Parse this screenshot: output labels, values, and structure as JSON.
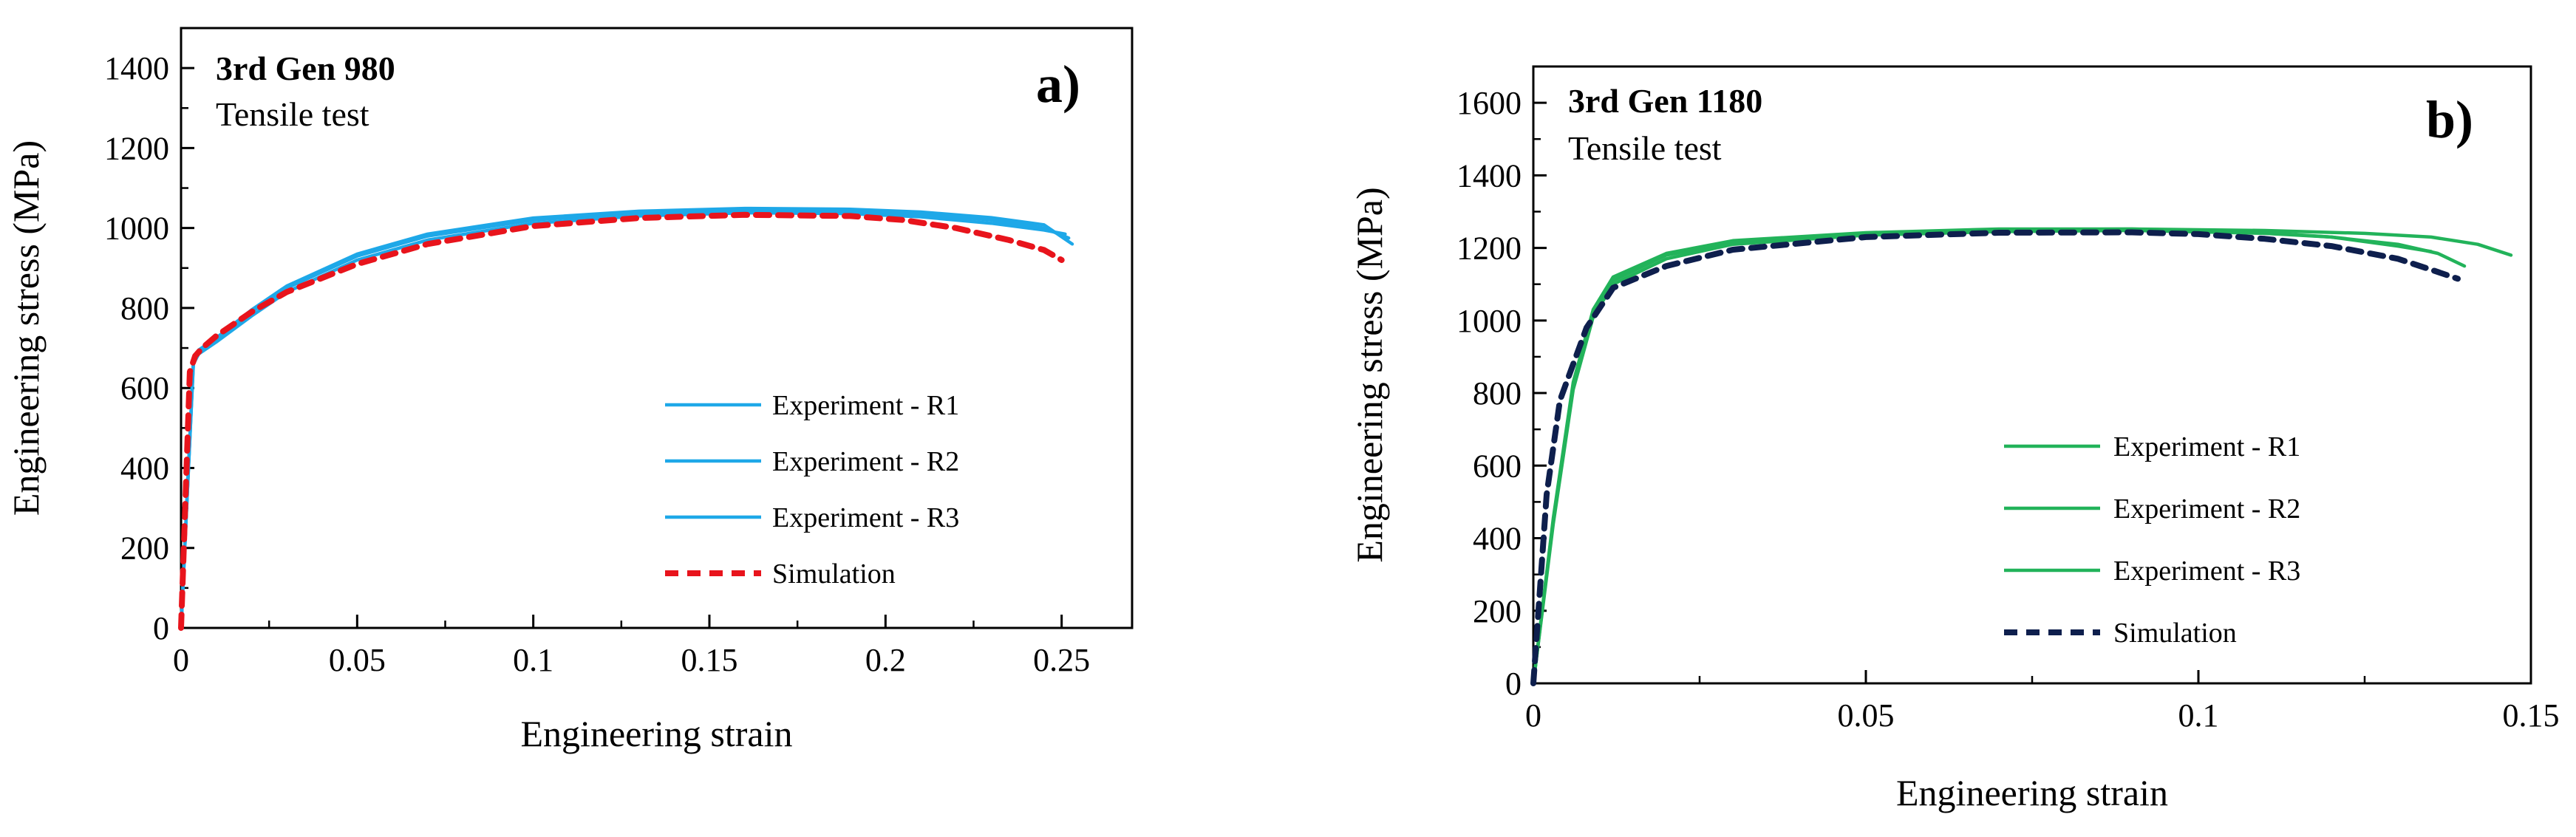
{
  "chart_data": [
    {
      "type": "line",
      "title": "3rd Gen 980",
      "subtitle": "Tensile test",
      "panel_label": "a)",
      "xlabel": "Engineering strain",
      "ylabel": "Engineering stress (MPa)",
      "xlim": [
        0,
        0.27
      ],
      "ylim": [
        0,
        1500
      ],
      "xticks": [
        0,
        0.05,
        0.1,
        0.15,
        0.2,
        0.25
      ],
      "xtick_labels": [
        "0",
        "0.05",
        "0.1",
        "0.15",
        "0.2",
        "0.25"
      ],
      "yticks": [
        0,
        200,
        400,
        600,
        800,
        1000,
        1200,
        1400
      ],
      "ytick_labels": [
        "0",
        "200",
        "400",
        "600",
        "800",
        "1000",
        "1200",
        "1400"
      ],
      "grid": false,
      "legend_position": "bottom-right",
      "series": [
        {
          "name": "Experiment - R1",
          "color": "#1ea8e8",
          "style": "solid",
          "x": [
            0,
            0.0035,
            0.005,
            0.01,
            0.02,
            0.03,
            0.05,
            0.07,
            0.1,
            0.13,
            0.16,
            0.19,
            0.21,
            0.23,
            0.245,
            0.252
          ],
          "y": [
            0,
            665,
            690,
            720,
            790,
            850,
            930,
            980,
            1020,
            1038,
            1045,
            1043,
            1035,
            1020,
            1000,
            975
          ]
        },
        {
          "name": "Experiment - R2",
          "color": "#1ea8e8",
          "style": "solid",
          "x": [
            0,
            0.0035,
            0.005,
            0.01,
            0.02,
            0.03,
            0.05,
            0.07,
            0.1,
            0.13,
            0.16,
            0.19,
            0.21,
            0.23,
            0.245,
            0.251
          ],
          "y": [
            0,
            660,
            685,
            715,
            780,
            840,
            920,
            970,
            1012,
            1030,
            1038,
            1036,
            1028,
            1012,
            995,
            985
          ]
        },
        {
          "name": "Experiment - R3",
          "color": "#1ea8e8",
          "style": "solid",
          "x": [
            0,
            0.0035,
            0.005,
            0.01,
            0.02,
            0.03,
            0.05,
            0.07,
            0.1,
            0.13,
            0.16,
            0.19,
            0.21,
            0.23,
            0.245,
            0.253
          ],
          "y": [
            0,
            668,
            695,
            725,
            795,
            855,
            935,
            985,
            1025,
            1042,
            1049,
            1047,
            1040,
            1026,
            1008,
            960
          ]
        },
        {
          "name": "Simulation",
          "color": "#e8141c",
          "style": "dashed",
          "x": [
            0,
            0.0025,
            0.004,
            0.006,
            0.01,
            0.02,
            0.03,
            0.05,
            0.07,
            0.1,
            0.13,
            0.16,
            0.19,
            0.205,
            0.22,
            0.235,
            0.245,
            0.25
          ],
          "y": [
            0,
            640,
            680,
            700,
            730,
            790,
            840,
            910,
            960,
            1005,
            1025,
            1033,
            1030,
            1020,
            1000,
            970,
            945,
            920
          ]
        }
      ]
    },
    {
      "type": "line",
      "title": "3rd Gen 1180",
      "subtitle": "Tensile test",
      "panel_label": "b)",
      "xlabel": "Engineering strain",
      "ylabel": "Engineering stress (MPa)",
      "xlim": [
        0,
        0.15
      ],
      "ylim": [
        0,
        1700
      ],
      "xticks": [
        0,
        0.05,
        0.1,
        0.15
      ],
      "xtick_labels": [
        "0",
        "0.05",
        "0.1",
        "0.15"
      ],
      "yticks": [
        0,
        200,
        400,
        600,
        800,
        1000,
        1200,
        1400,
        1600
      ],
      "ytick_labels": [
        "0",
        "200",
        "400",
        "600",
        "800",
        "1000",
        "1200",
        "1400",
        "1600"
      ],
      "grid": false,
      "legend_position": "bottom-right",
      "series": [
        {
          "name": "Experiment - R1",
          "color": "#22b35a",
          "style": "solid",
          "x": [
            0,
            0.003,
            0.006,
            0.009,
            0.012,
            0.02,
            0.03,
            0.05,
            0.07,
            0.09,
            0.11,
            0.125,
            0.135,
            0.142,
            0.147
          ],
          "y": [
            0,
            450,
            820,
            1020,
            1110,
            1180,
            1215,
            1240,
            1250,
            1252,
            1248,
            1240,
            1230,
            1210,
            1180
          ]
        },
        {
          "name": "Experiment - R2",
          "color": "#22b35a",
          "style": "solid",
          "x": [
            0,
            0.003,
            0.006,
            0.009,
            0.012,
            0.02,
            0.03,
            0.05,
            0.07,
            0.09,
            0.11,
            0.12,
            0.13,
            0.136,
            0.14
          ],
          "y": [
            0,
            440,
            810,
            1010,
            1100,
            1170,
            1210,
            1235,
            1245,
            1248,
            1240,
            1230,
            1210,
            1185,
            1150
          ]
        },
        {
          "name": "Experiment - R3",
          "color": "#22b35a",
          "style": "solid",
          "x": [
            0,
            0.003,
            0.006,
            0.009,
            0.012,
            0.02,
            0.03,
            0.05,
            0.07,
            0.09,
            0.11,
            0.12,
            0.13,
            0.135
          ],
          "y": [
            0,
            455,
            830,
            1030,
            1120,
            1185,
            1220,
            1242,
            1252,
            1252,
            1242,
            1230,
            1205,
            1190
          ]
        },
        {
          "name": "Simulation",
          "color": "#0e1f4d",
          "style": "dashed",
          "x": [
            0,
            0.002,
            0.004,
            0.006,
            0.008,
            0.012,
            0.02,
            0.03,
            0.05,
            0.07,
            0.09,
            0.1,
            0.11,
            0.12,
            0.13,
            0.135,
            0.139
          ],
          "y": [
            0,
            520,
            780,
            880,
            980,
            1090,
            1150,
            1195,
            1230,
            1242,
            1243,
            1238,
            1225,
            1205,
            1170,
            1140,
            1115
          ]
        }
      ]
    }
  ]
}
